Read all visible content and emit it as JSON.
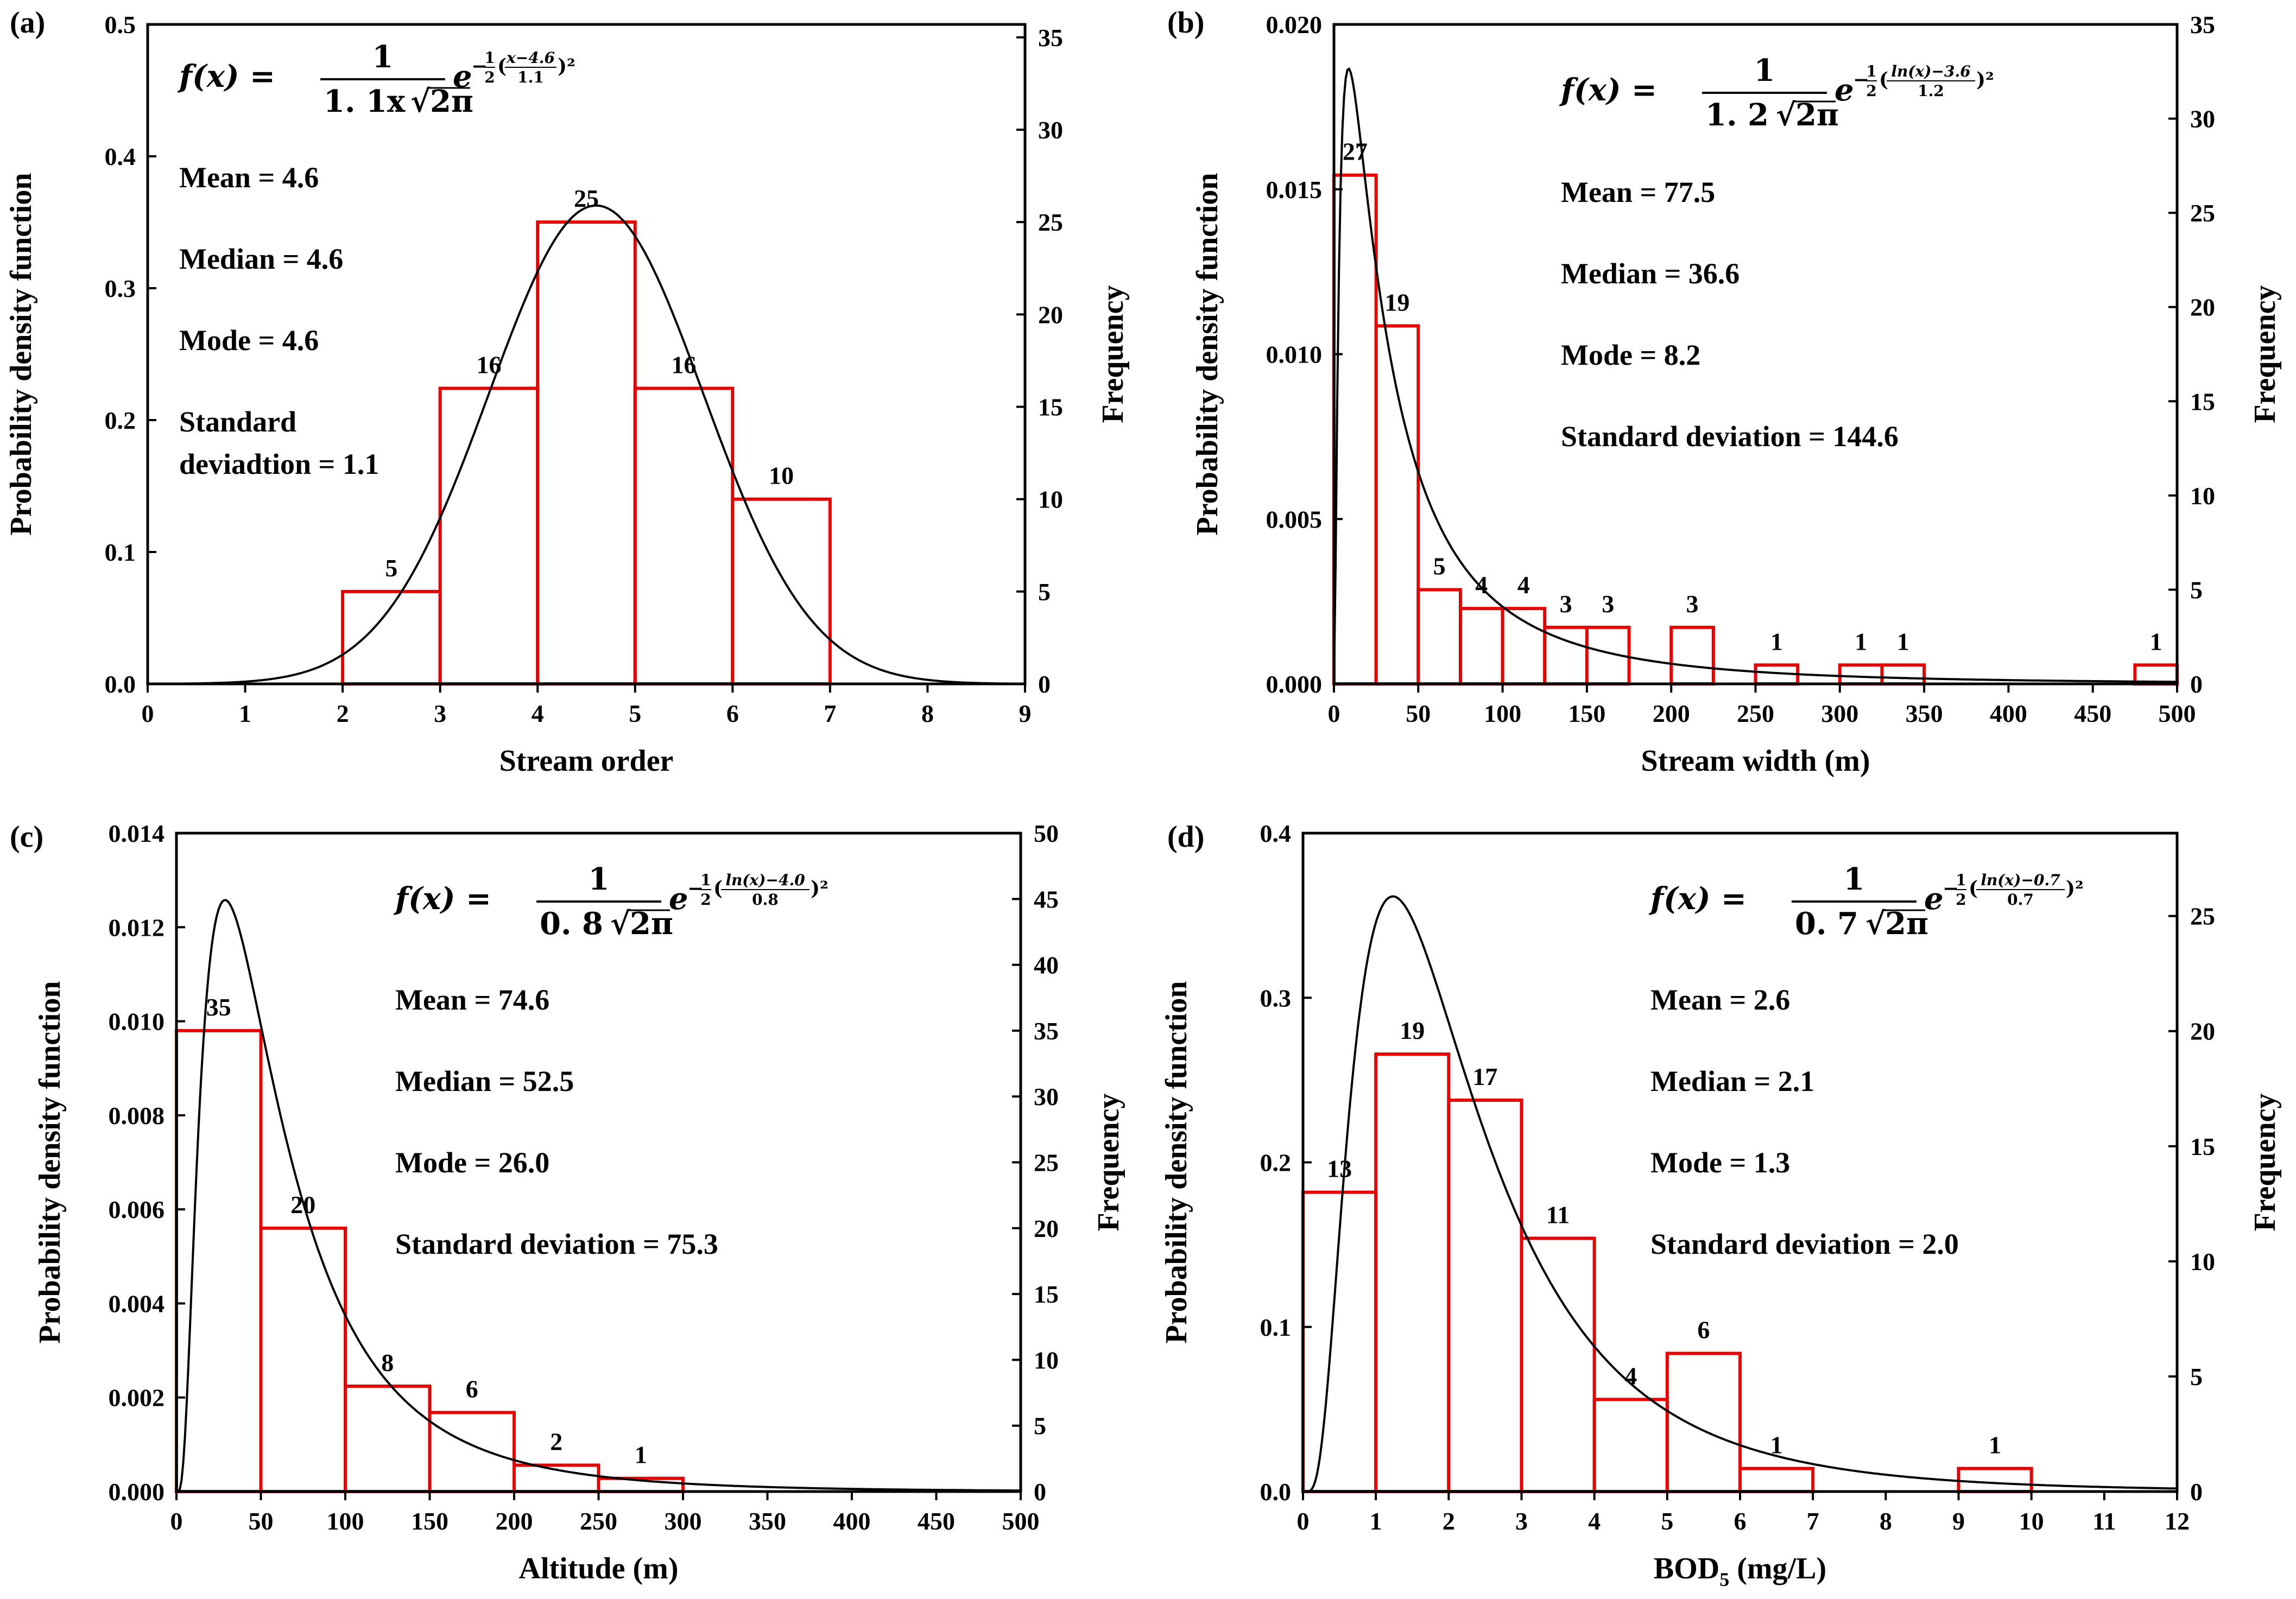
{
  "figure": {
    "panels": [
      {
        "id": "a",
        "panel_label": "(a)",
        "equation": {
          "prefix": "f(x) =",
          "num": "1",
          "den": "1. 1x",
          "den_sqrt": "2π",
          "exp_lead": "−",
          "exp_half_num": "1",
          "exp_half_den": "2",
          "exp_open": "(",
          "exp_frac_num": "x−4.6",
          "exp_frac_den": "1.1",
          "exp_close": ")²"
        },
        "stats": [
          "Mean = 4.6",
          "Median = 4.6",
          "Mode = 4.6",
          "Standard",
          "deviadtion = 1.1"
        ]
      },
      {
        "id": "b",
        "panel_label": "(b)",
        "equation": {
          "prefix": "f(x) =",
          "num": "1",
          "den": "1. 2",
          "den_sqrt": "2π",
          "exp_lead": "−",
          "exp_half_num": "1",
          "exp_half_den": "2",
          "exp_open": "(",
          "exp_frac_num": "ln(x)−3.6",
          "exp_frac_den": "1.2",
          "exp_close": ")²"
        },
        "stats": [
          "Mean = 77.5",
          "Median = 36.6",
          "Mode = 8.2",
          "Standard deviation = 144.6"
        ]
      },
      {
        "id": "c",
        "panel_label": "(c)",
        "equation": {
          "prefix": "f(x) =",
          "num": "1",
          "den": "0. 8",
          "den_sqrt": "2π",
          "exp_lead": "−",
          "exp_half_num": "1",
          "exp_half_den": "2",
          "exp_open": "(",
          "exp_frac_num": "ln(x)−4.0",
          "exp_frac_den": "0.8",
          "exp_close": ")²"
        },
        "stats": [
          "Mean = 74.6",
          "Median = 52.5",
          "Mode = 26.0",
          "Standard deviation = 75.3"
        ]
      },
      {
        "id": "d",
        "panel_label": "(d)",
        "equation": {
          "prefix": "f(x) =",
          "num": "1",
          "den": "0. 7",
          "den_sqrt": "2π",
          "exp_lead": "−",
          "exp_half_num": "1",
          "exp_half_den": "2",
          "exp_open": "(",
          "exp_frac_num": "ln(x)−0.7",
          "exp_frac_den": "0.7",
          "exp_close": ")²"
        },
        "stats": [
          "Mean = 2.6",
          "Median = 2.1",
          "Mode = 1.3",
          "Standard deviation = 2.0"
        ]
      }
    ]
  },
  "chart_data": [
    {
      "panel": "a",
      "type": "bar",
      "title": "",
      "xlabel": "Stream order",
      "ylabel": "Probability density function",
      "y2label": "Frequency",
      "xlim": [
        0,
        9
      ],
      "ylim": [
        0,
        0.5
      ],
      "y2lim": [
        0,
        35.7
      ],
      "xticks": [
        "0",
        "1",
        "2",
        "3",
        "4",
        "5",
        "6",
        "7",
        "8",
        "9"
      ],
      "yticks": [
        "0.0",
        "0.1",
        "0.2",
        "0.3",
        "0.4",
        "0.5"
      ],
      "y2ticks": [
        "0",
        "5",
        "10",
        "15",
        "20",
        "25",
        "30",
        "35"
      ],
      "bin_edges": [
        2,
        3,
        4,
        5,
        6,
        7
      ],
      "frequencies": [
        5,
        16,
        25,
        16,
        10
      ],
      "bar_labels": [
        "5",
        "16",
        "25",
        "16",
        "10"
      ],
      "curve": {
        "dist": "normal",
        "mu": 4.6,
        "sigma": 1.1,
        "scale": 1.0
      }
    },
    {
      "panel": "b",
      "type": "bar",
      "title": "",
      "xlabel": "Stream width (m)",
      "ylabel": "Probability density function",
      "y2label": "Frequency",
      "xlim": [
        0,
        500
      ],
      "ylim": [
        0,
        0.02
      ],
      "y2lim": [
        0,
        35
      ],
      "xticks": [
        "0",
        "50",
        "100",
        "150",
        "200",
        "250",
        "300",
        "350",
        "400",
        "450",
        "500"
      ],
      "yticks": [
        "0.000",
        "0.005",
        "0.010",
        "0.015",
        "0.020"
      ],
      "y2ticks": [
        "0",
        "5",
        "10",
        "15",
        "20",
        "25",
        "30",
        "35"
      ],
      "bin_edges": [
        0,
        25,
        50,
        75,
        100,
        125,
        150,
        175,
        200,
        225,
        250,
        275,
        300,
        325,
        350,
        375,
        400,
        425,
        450,
        475,
        500
      ],
      "frequencies": [
        27,
        19,
        5,
        4,
        4,
        3,
        3,
        0,
        3,
        0,
        1,
        0,
        1,
        1,
        0,
        0,
        0,
        0,
        0,
        1
      ],
      "bar_labels": [
        "27",
        "19",
        "5",
        "4",
        "4",
        "3",
        "3",
        "",
        "3",
        "",
        "1",
        "",
        "1",
        "1",
        "",
        "",
        "",
        "",
        "",
        "1"
      ],
      "curve": {
        "dist": "lognormal",
        "mu": 3.6,
        "sigma": 1.2,
        "scale": 1.0
      }
    },
    {
      "panel": "c",
      "type": "bar",
      "title": "",
      "xlabel": "Altitude (m)",
      "ylabel": "Probability density function",
      "y2label": "Frequency",
      "xlim": [
        0,
        500
      ],
      "ylim": [
        0,
        0.014
      ],
      "y2lim": [
        0,
        50
      ],
      "xticks": [
        "0",
        "50",
        "100",
        "150",
        "200",
        "250",
        "300",
        "350",
        "400",
        "450",
        "500"
      ],
      "yticks": [
        "0.000",
        "0.002",
        "0.004",
        "0.006",
        "0.008",
        "0.010",
        "0.012",
        "0.014"
      ],
      "y2ticks": [
        "0",
        "5",
        "10",
        "15",
        "20",
        "25",
        "30",
        "35",
        "40",
        "45",
        "50"
      ],
      "bin_edges": [
        0,
        50,
        100,
        150,
        200,
        250,
        300
      ],
      "frequencies": [
        35,
        20,
        8,
        6,
        2,
        1
      ],
      "bar_labels": [
        "35",
        "20",
        "8",
        "6",
        "2",
        "1"
      ],
      "curve": {
        "dist": "lognormal",
        "mu": 4.0,
        "sigma": 0.8,
        "scale": 1.0
      }
    },
    {
      "panel": "d",
      "type": "bar",
      "title": "",
      "xlabel": "BOD",
      "xlabel_sub": "5",
      "xlabel_tail": " (mg/L)",
      "ylabel": "Probability density function",
      "y2label": "Frequency",
      "xlim": [
        0,
        12
      ],
      "ylim": [
        0,
        0.4
      ],
      "y2lim": [
        0,
        28.6
      ],
      "xticks": [
        "0",
        "1",
        "2",
        "3",
        "4",
        "5",
        "6",
        "7",
        "8",
        "9",
        "10",
        "11",
        "12"
      ],
      "yticks": [
        "0.0",
        "0.1",
        "0.2",
        "0.3",
        "0.4"
      ],
      "y2ticks": [
        "0",
        "5",
        "10",
        "15",
        "20",
        "25"
      ],
      "bin_edges": [
        0,
        1,
        2,
        3,
        4,
        5,
        6,
        7,
        8,
        9,
        10,
        11,
        12
      ],
      "frequencies": [
        13,
        19,
        17,
        11,
        4,
        6,
        1,
        0,
        0,
        1,
        0,
        0
      ],
      "bar_labels": [
        "13",
        "19",
        "17",
        "11",
        "4",
        "6",
        "1",
        "",
        "",
        "1",
        "",
        ""
      ],
      "curve": {
        "dist": "lognormal",
        "mu": 0.7,
        "sigma": 0.7,
        "scale": 1.0
      }
    }
  ]
}
